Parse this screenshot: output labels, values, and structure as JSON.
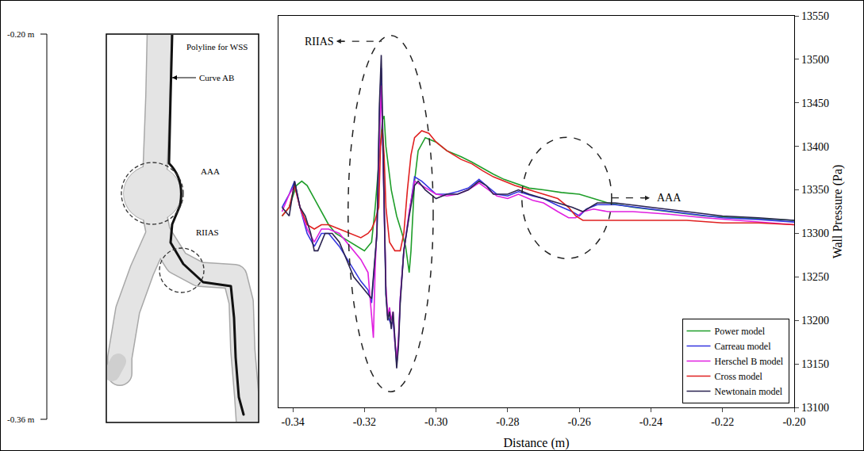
{
  "chart_data": {
    "type": "line",
    "x_label": "Distance (m)",
    "y_label": "Wall Pressure (Pa)",
    "xlim": [
      -0.344,
      -0.2
    ],
    "xticks": [
      -0.34,
      -0.32,
      {
        "value": -0.3,
        "label": "-0.30"
      },
      -0.28,
      -0.26,
      -0.24,
      -0.22,
      {
        "value": -0.2,
        "label": "-0.20"
      }
    ],
    "ylim": [
      13100,
      13550
    ],
    "yticks": [
      13100,
      13150,
      13200,
      13250,
      13300,
      13350,
      13400,
      13450,
      13500,
      13550
    ],
    "grid": false,
    "legend": "bottom-right",
    "annotations": [
      "RIIAS",
      "AAA"
    ],
    "series": [
      {
        "name": "Power model",
        "color": "#1f9e2a",
        "x": [
          -0.343,
          -0.341,
          -0.339,
          -0.3375,
          -0.336,
          -0.334,
          -0.332,
          -0.33,
          -0.328,
          -0.326,
          -0.324,
          -0.322,
          -0.32,
          -0.318,
          -0.317,
          -0.316,
          -0.315,
          -0.3145,
          -0.314,
          -0.3125,
          -0.311,
          -0.3095,
          -0.3085,
          -0.3075,
          -0.307,
          -0.306,
          -0.305,
          -0.303,
          -0.3,
          -0.297,
          -0.293,
          -0.29,
          -0.287,
          -0.284,
          -0.281,
          -0.278,
          -0.274,
          -0.27,
          -0.265,
          -0.26,
          -0.256,
          -0.252,
          -0.245,
          -0.235,
          -0.225,
          -0.215,
          -0.2
        ],
        "values": [
          13320,
          13330,
          13355,
          13360,
          13355,
          13340,
          13325,
          13310,
          13300,
          13295,
          13290,
          13285,
          13280,
          13290,
          13330,
          13380,
          13430,
          13435,
          13400,
          13350,
          13320,
          13300,
          13285,
          13255,
          13280,
          13360,
          13395,
          13410,
          13405,
          13395,
          13388,
          13382,
          13375,
          13368,
          13362,
          13358,
          13352,
          13350,
          13347,
          13345,
          13340,
          13335,
          13330,
          13325,
          13320,
          13318,
          13315
        ]
      },
      {
        "name": "Carreau model",
        "color": "#3535e0",
        "x": [
          -0.343,
          -0.341,
          -0.3395,
          -0.338,
          -0.336,
          -0.334,
          -0.332,
          -0.33,
          -0.327,
          -0.324,
          -0.321,
          -0.319,
          -0.318,
          -0.3165,
          -0.3158,
          -0.3153,
          -0.3148,
          -0.314,
          -0.3135,
          -0.313,
          -0.3125,
          -0.312,
          -0.3115,
          -0.311,
          -0.3105,
          -0.31,
          -0.309,
          -0.3075,
          -0.306,
          -0.304,
          -0.3,
          -0.297,
          -0.294,
          -0.291,
          -0.288,
          -0.286,
          -0.283,
          -0.28,
          -0.277,
          -0.273,
          -0.27,
          -0.266,
          -0.262,
          -0.26,
          -0.258,
          -0.255,
          -0.25,
          -0.24,
          -0.23,
          -0.22,
          -0.21,
          -0.2
        ],
        "values": [
          13330,
          13345,
          13360,
          13330,
          13300,
          13285,
          13300,
          13300,
          13285,
          13265,
          13245,
          13235,
          13220,
          13300,
          13440,
          13490,
          13390,
          13230,
          13205,
          13200,
          13195,
          13200,
          13175,
          13150,
          13175,
          13225,
          13280,
          13325,
          13365,
          13360,
          13345,
          13345,
          13348,
          13352,
          13362,
          13355,
          13345,
          13343,
          13348,
          13343,
          13340,
          13332,
          13325,
          13320,
          13328,
          13333,
          13333,
          13328,
          13323,
          13318,
          13316,
          13313
        ]
      },
      {
        "name": "Herschel B model",
        "color": "#e020e0",
        "x": [
          -0.343,
          -0.341,
          -0.3395,
          -0.338,
          -0.336,
          -0.334,
          -0.332,
          -0.33,
          -0.327,
          -0.324,
          -0.321,
          -0.319,
          -0.3175,
          -0.317,
          -0.3165,
          -0.316,
          -0.3153,
          -0.3148,
          -0.314,
          -0.3135,
          -0.313,
          -0.3125,
          -0.312,
          -0.3115,
          -0.311,
          -0.3105,
          -0.31,
          -0.309,
          -0.3075,
          -0.306,
          -0.304,
          -0.3,
          -0.297,
          -0.294,
          -0.291,
          -0.288,
          -0.286,
          -0.283,
          -0.28,
          -0.277,
          -0.273,
          -0.27,
          -0.266,
          -0.263,
          -0.261,
          -0.259,
          -0.256,
          -0.252,
          -0.245,
          -0.235,
          -0.225,
          -0.215,
          -0.2
        ],
        "values": [
          13325,
          13345,
          13355,
          13330,
          13305,
          13290,
          13305,
          13305,
          13300,
          13285,
          13270,
          13255,
          13180,
          13260,
          13310,
          13380,
          13470,
          13390,
          13240,
          13205,
          13215,
          13200,
          13210,
          13175,
          13155,
          13180,
          13225,
          13280,
          13325,
          13360,
          13355,
          13345,
          13343,
          13345,
          13350,
          13358,
          13352,
          13343,
          13340,
          13345,
          13338,
          13335,
          13325,
          13318,
          13318,
          13325,
          13328,
          13325,
          13325,
          13322,
          13318,
          13315,
          13310
        ]
      },
      {
        "name": "Cross model",
        "color": "#e02020",
        "x": [
          -0.343,
          -0.341,
          -0.3395,
          -0.338,
          -0.336,
          -0.334,
          -0.332,
          -0.33,
          -0.327,
          -0.324,
          -0.321,
          -0.319,
          -0.318,
          -0.317,
          -0.316,
          -0.3155,
          -0.315,
          -0.3145,
          -0.314,
          -0.313,
          -0.3115,
          -0.31,
          -0.309,
          -0.308,
          -0.307,
          -0.306,
          -0.304,
          -0.302,
          -0.3,
          -0.297,
          -0.293,
          -0.29,
          -0.287,
          -0.284,
          -0.281,
          -0.278,
          -0.274,
          -0.27,
          -0.266,
          -0.263,
          -0.261,
          -0.259,
          -0.256,
          -0.25,
          -0.24,
          -0.23,
          -0.22,
          -0.21,
          -0.2
        ],
        "values": [
          13320,
          13330,
          13355,
          13330,
          13310,
          13305,
          13310,
          13310,
          13305,
          13300,
          13295,
          13300,
          13305,
          13315,
          13330,
          13400,
          13420,
          13390,
          13330,
          13290,
          13280,
          13280,
          13300,
          13350,
          13390,
          13410,
          13418,
          13415,
          13405,
          13395,
          13385,
          13380,
          13372,
          13365,
          13360,
          13355,
          13350,
          13345,
          13340,
          13330,
          13320,
          13315,
          13315,
          13315,
          13315,
          13315,
          13312,
          13312,
          13310
        ]
      },
      {
        "name": "Newtonain model",
        "color": "#2a2350",
        "x": [
          -0.343,
          -0.341,
          -0.3395,
          -0.338,
          -0.3365,
          -0.335,
          -0.334,
          -0.333,
          -0.331,
          -0.329,
          -0.327,
          -0.325,
          -0.323,
          -0.321,
          -0.319,
          -0.318,
          -0.3165,
          -0.3158,
          -0.3153,
          -0.3148,
          -0.314,
          -0.3135,
          -0.313,
          -0.3125,
          -0.312,
          -0.3115,
          -0.311,
          -0.3105,
          -0.31,
          -0.309,
          -0.3075,
          -0.306,
          -0.305,
          -0.303,
          -0.3,
          -0.297,
          -0.294,
          -0.291,
          -0.288,
          -0.286,
          -0.284,
          -0.28,
          -0.277,
          -0.274,
          -0.27,
          -0.266,
          -0.262,
          -0.259,
          -0.257,
          -0.255,
          -0.25,
          -0.24,
          -0.23,
          -0.22,
          -0.21,
          -0.2
        ],
        "values": [
          13330,
          13320,
          13360,
          13330,
          13320,
          13300,
          13280,
          13280,
          13300,
          13300,
          13290,
          13270,
          13250,
          13240,
          13230,
          13225,
          13300,
          13450,
          13505,
          13400,
          13230,
          13200,
          13210,
          13190,
          13210,
          13180,
          13145,
          13170,
          13220,
          13280,
          13320,
          13355,
          13360,
          13350,
          13340,
          13345,
          13345,
          13350,
          13360,
          13355,
          13345,
          13345,
          13350,
          13345,
          13340,
          13335,
          13330,
          13325,
          13330,
          13335,
          13335,
          13330,
          13325,
          13320,
          13318,
          13315
        ]
      }
    ]
  },
  "diagram": {
    "scale": {
      "top": "-0.20 m",
      "bottom": "-0.36 m"
    },
    "labels": {
      "polyline": "Polyline for WSS",
      "curve": "Curve AB",
      "aneurysm": "AAA",
      "stenosis": "RIIAS"
    }
  }
}
